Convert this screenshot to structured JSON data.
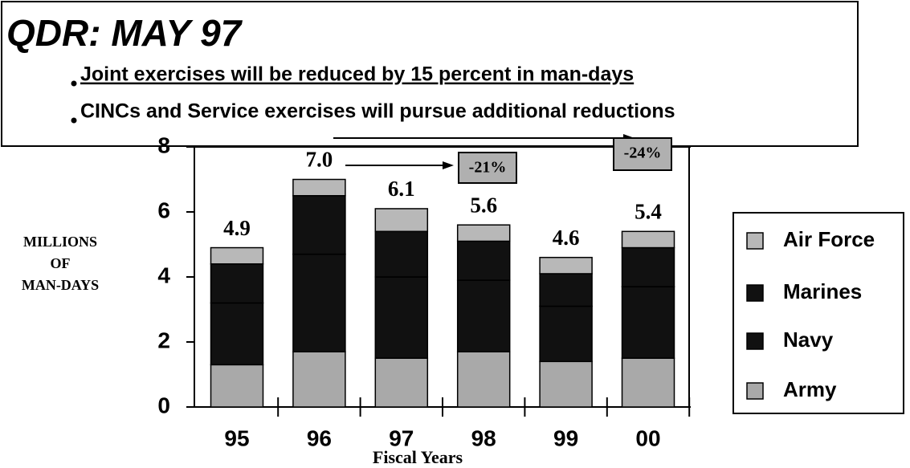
{
  "chart_data": {
    "type": "stacked_bar",
    "title": "QDR: MAY 97",
    "bullets": [
      "Joint exercises will be reduced by 15 percent in man-days",
      "CINCs and Service exercises will pursue additional reductions"
    ],
    "y_label": [
      "MILLIONS",
      "OF",
      "MAN-DAYS"
    ],
    "x_label": "Fiscal Years",
    "categories": [
      "95",
      "96",
      "97",
      "98",
      "99",
      "00"
    ],
    "series": [
      {
        "name": "Army",
        "color": "#a9a9a9",
        "values": [
          1.3,
          1.7,
          1.5,
          1.7,
          1.4,
          1.5
        ]
      },
      {
        "name": "Navy",
        "color": "#111111",
        "values": [
          1.9,
          3.0,
          2.5,
          2.2,
          1.7,
          2.2
        ]
      },
      {
        "name": "Marines",
        "color": "#111111",
        "values": [
          1.2,
          1.8,
          1.4,
          1.2,
          1.0,
          1.2
        ]
      },
      {
        "name": "Air Force",
        "color": "#b8b8b8",
        "values": [
          0.5,
          0.5,
          0.7,
          0.5,
          0.5,
          0.5
        ]
      }
    ],
    "totals": [
      4.9,
      7.0,
      6.1,
      5.6,
      4.6,
      5.4
    ],
    "total_labels": [
      "4.9",
      "7.0",
      "6.1",
      "5.6",
      "4.6",
      "5.4"
    ],
    "annotations": [
      "-21%",
      "-24%"
    ],
    "ylim": [
      0,
      8
    ],
    "yticks": [
      0,
      2,
      4,
      6,
      8
    ]
  }
}
